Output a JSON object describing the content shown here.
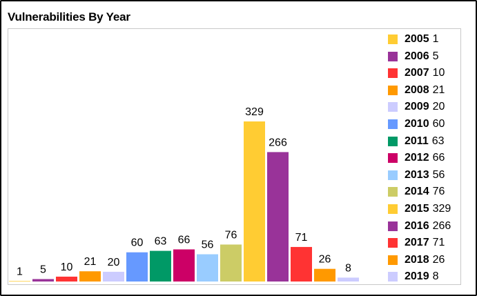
{
  "title": "Vulnerabilities By Year",
  "chart_data": {
    "type": "bar",
    "title": "Vulnerabilities By Year",
    "xlabel": "",
    "ylabel": "",
    "categories": [
      "2005",
      "2006",
      "2007",
      "2008",
      "2009",
      "2010",
      "2011",
      "2012",
      "2013",
      "2014",
      "2015",
      "2016",
      "2017",
      "2018",
      "2019"
    ],
    "values": [
      1,
      5,
      10,
      21,
      20,
      60,
      63,
      66,
      56,
      76,
      329,
      266,
      71,
      26,
      8
    ],
    "colors": [
      "#FFCC33",
      "#993399",
      "#FF3333",
      "#FF9900",
      "#CCCCFF",
      "#6699FF",
      "#009966",
      "#CC0066",
      "#99CCFF",
      "#CCCC66",
      "#FFCC33",
      "#993399",
      "#FF3333",
      "#FF9900",
      "#CCCCFF"
    ],
    "ylim": [
      0,
      329
    ],
    "grid": false,
    "legend": "right",
    "data_labels": true
  },
  "legend": {
    "items": [
      {
        "year": "2005",
        "value": "1"
      },
      {
        "year": "2006",
        "value": "5"
      },
      {
        "year": "2007",
        "value": "10"
      },
      {
        "year": "2008",
        "value": "21"
      },
      {
        "year": "2009",
        "value": "20"
      },
      {
        "year": "2010",
        "value": "60"
      },
      {
        "year": "2011",
        "value": "63"
      },
      {
        "year": "2012",
        "value": "66"
      },
      {
        "year": "2013",
        "value": "56"
      },
      {
        "year": "2014",
        "value": "76"
      },
      {
        "year": "2015",
        "value": "329"
      },
      {
        "year": "2016",
        "value": "266"
      },
      {
        "year": "2017",
        "value": "71"
      },
      {
        "year": "2018",
        "value": "26"
      },
      {
        "year": "2019",
        "value": "8"
      }
    ]
  }
}
